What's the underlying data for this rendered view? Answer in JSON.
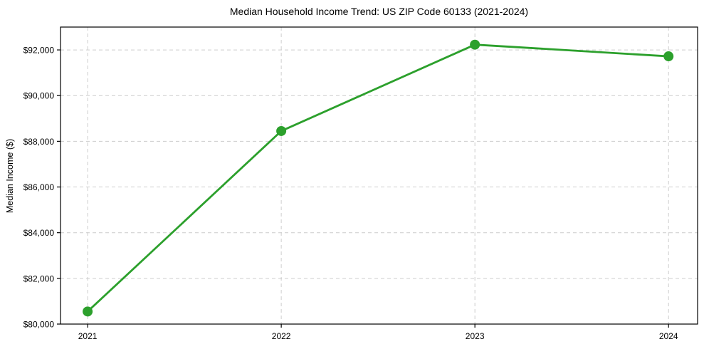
{
  "chart_data": {
    "type": "line",
    "title": "Median Household Income Trend: US ZIP Code 60133 (2021-2024)",
    "ylabel": "Median Income ($)",
    "xlabel": "",
    "x": [
      2021,
      2022,
      2023,
      2024
    ],
    "values": [
      80550,
      88450,
      92230,
      91720
    ],
    "categories": [
      "2021",
      "2022",
      "2023",
      "2024"
    ],
    "ytick_values": [
      80000,
      82000,
      84000,
      86000,
      88000,
      90000,
      92000
    ],
    "ytick_labels": [
      "$80,000",
      "$82,000",
      "$84,000",
      "$86,000",
      "$88,000",
      "$90,000",
      "$92,000"
    ],
    "xtick_labels": [
      "2021",
      "2022",
      "2023",
      "2024"
    ],
    "ylim": [
      80000,
      93000
    ],
    "xlim": [
      2020.86,
      2024.15
    ],
    "grid": true,
    "legend": "none",
    "line_color": "#2ca02c",
    "marker_color": "#2ca02c",
    "grid_color": "#cccccc",
    "spine_color": "#000000",
    "tick_label_color": "#000000"
  }
}
